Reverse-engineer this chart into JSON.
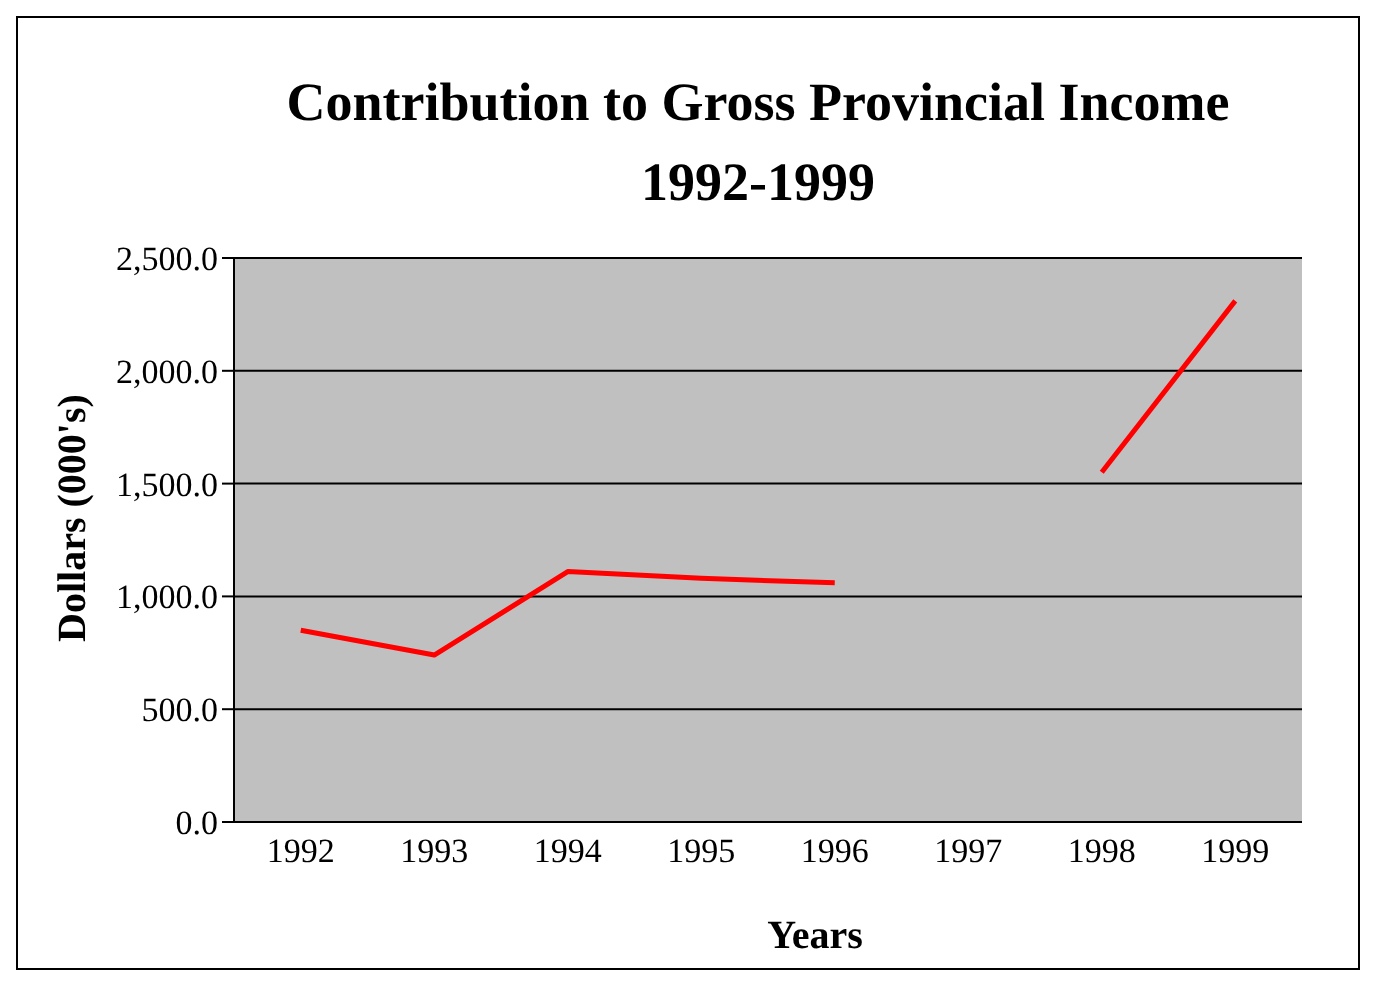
{
  "chart_data": {
    "type": "line",
    "title": "Contribution to Gross Provincial Income\n1992-1999",
    "xlabel": "Years",
    "ylabel": "Dollars (000's)",
    "categories": [
      "1992",
      "1993",
      "1994",
      "1995",
      "1996",
      "1997",
      "1998",
      "1999"
    ],
    "series": [
      {
        "color": "#ff0000",
        "values": [
          850,
          740,
          1110,
          1080,
          1060,
          null,
          1550,
          2310
        ]
      }
    ],
    "ylim": [
      0,
      2500
    ],
    "yticks": [
      {
        "value": 0,
        "label": "0.0"
      },
      {
        "value": 500,
        "label": "500.0"
      },
      {
        "value": 1000,
        "label": "1,000.0"
      },
      {
        "value": 1500,
        "label": "1,500.0"
      },
      {
        "value": 2000,
        "label": "2,000.0"
      },
      {
        "value": 2500,
        "label": "2,500.0"
      }
    ],
    "grid": "y",
    "marker": "none",
    "line_style": "solid"
  }
}
